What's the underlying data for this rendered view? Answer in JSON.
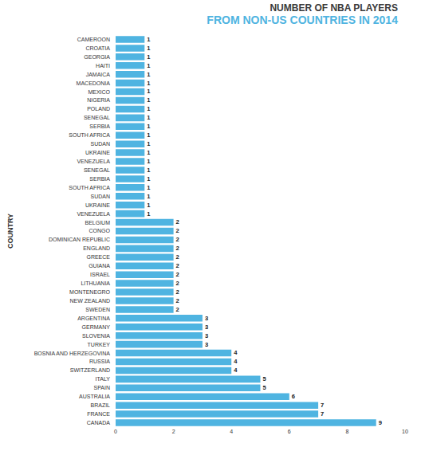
{
  "chart_data": {
    "type": "bar",
    "orientation": "horizontal",
    "title": "NUMBER OF NBA PLAYERS",
    "subtitle": "FROM NON-US COUNTRIES IN 2014",
    "ylabel": "COUNTRY",
    "categories": [
      "CAMEROON",
      "CROATIA",
      "GEORGIA",
      "HAITI",
      "JAMAICA",
      "MACEDONIA",
      "MEXICO",
      "NIGERIA",
      "POLAND",
      "SENEGAL",
      "SERBIA",
      "SOUTH AFRICA",
      "SUDAN",
      "UKRAINE",
      "VENEZUELA",
      "SENEGAL",
      "SERBIA",
      "SOUTH AFRICA",
      "SUDAN",
      "UKRAINE",
      "VENEZUELA",
      "BELGIUM",
      "CONGO",
      "DOMINICAN REPUBLIC",
      "ENGLAND",
      "GREECE",
      "GUIANA",
      "ISRAEL",
      "LITHUANIA",
      "MONTENEGRO",
      "NEW ZEALAND",
      "SWEDEN",
      "ARGENTINA",
      "GERMANY",
      "SLOVENIA",
      "TURKEY",
      "BOSNIA AND HERZEGOVINA",
      "RUSSIA",
      "SWITZERLAND",
      "ITALY",
      "SPAIN",
      "AUSTRALIA",
      "BRAZIL",
      "FRANCE",
      "CANADA"
    ],
    "values": [
      1,
      1,
      1,
      1,
      1,
      1,
      1,
      1,
      1,
      1,
      1,
      1,
      1,
      1,
      1,
      1,
      1,
      1,
      1,
      1,
      1,
      2,
      2,
      2,
      2,
      2,
      2,
      2,
      2,
      2,
      2,
      2,
      3,
      3,
      3,
      3,
      4,
      4,
      4,
      5,
      5,
      6,
      7,
      7,
      9
    ],
    "color": "#4fb4e1",
    "xlim": [
      0,
      10
    ],
    "xticks": [
      0,
      2,
      4,
      6,
      8,
      10
    ],
    "grid": false,
    "data_labels": true
  }
}
